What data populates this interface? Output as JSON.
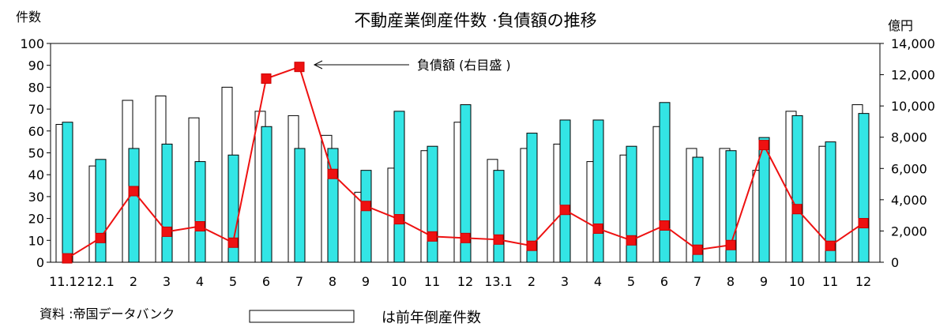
{
  "chart_data": {
    "type": "bar",
    "title": "不動産業倒産件数 ·負債額の推移",
    "left_unit": "件数",
    "right_unit": "億円",
    "categories": [
      "11.12",
      "12.1",
      "2",
      "3",
      "4",
      "5",
      "6",
      "7",
      "8",
      "9",
      "10",
      "11",
      "12",
      "13.1",
      "2",
      "3",
      "4",
      "5",
      "6",
      "7",
      "8",
      "9",
      "10",
      "11",
      "12"
    ],
    "ylim_left": [
      0,
      100
    ],
    "ylim_right": [
      0,
      14000
    ],
    "yticks_left": [
      "0",
      "10",
      "20",
      "30",
      "40",
      "50",
      "60",
      "70",
      "80",
      "90",
      "100"
    ],
    "yticks_right": [
      "0",
      "2,000",
      "4,000",
      "6,000",
      "8,000",
      "10,000",
      "12,000",
      "14,000"
    ],
    "series": [
      {
        "name": "前年倒産件数",
        "kind": "bar",
        "axis": "left",
        "color": "#ffffff",
        "values": [
          63,
          44,
          74,
          76,
          66,
          80,
          69,
          67,
          58,
          32,
          43,
          51,
          64,
          47,
          52,
          54,
          46,
          49,
          62,
          52,
          52,
          42,
          69,
          53,
          72
        ]
      },
      {
        "name": "件数",
        "kind": "bar",
        "axis": "left",
        "color": "#33e5e5",
        "values": [
          64,
          47,
          52,
          54,
          46,
          49,
          62,
          52,
          52,
          42,
          69,
          53,
          72,
          42,
          59,
          65,
          65,
          53,
          73,
          48,
          51,
          57,
          67,
          55,
          68
        ]
      },
      {
        "name": "負債額",
        "kind": "line",
        "axis": "right",
        "color": "#ee1111",
        "values": [
          250,
          1550,
          4550,
          1950,
          2300,
          1250,
          11750,
          12500,
          5650,
          3600,
          2750,
          1650,
          1550,
          1450,
          1050,
          3350,
          2150,
          1400,
          2350,
          800,
          1100,
          7500,
          3400,
          1050,
          2500
        ]
      }
    ],
    "annotation": "負債額 (右目盛 )",
    "source": "資料 :帝国データバンク",
    "legend_label": "は前年倒産件数",
    "grid": false
  }
}
